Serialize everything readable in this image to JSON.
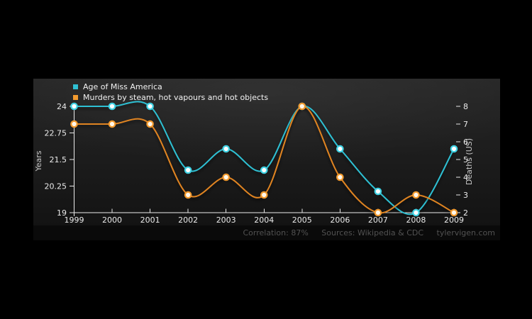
{
  "page": {
    "background": "#000000",
    "panel_background_top": "#272727",
    "panel_background_bottom": "#131313"
  },
  "legend": {
    "position": "top-left"
  },
  "footer": {
    "correlation": "Correlation: 87%",
    "sources": "Sources: Wikipedia & CDC",
    "site": "tylervigen.com"
  },
  "chart_data": {
    "type": "line",
    "title": "",
    "x": [
      1999,
      2000,
      2001,
      2002,
      2003,
      2004,
      2005,
      2006,
      2007,
      2008,
      2009
    ],
    "series": [
      {
        "name": "Age of Miss America",
        "axis": "left",
        "color": "#2fc0d3",
        "marker_stroke": "#3fd2e4",
        "marker_fill": "#ffffff",
        "values": [
          24,
          24,
          24,
          21,
          22,
          21,
          24,
          22,
          20,
          19,
          22
        ]
      },
      {
        "name": "Murders by steam, hot vapours and hot objects",
        "axis": "right",
        "color": "#e08420",
        "marker_stroke": "#f29a2e",
        "marker_fill": "#fff8ec",
        "values": [
          7,
          7,
          7,
          3,
          4,
          3,
          8,
          4,
          2,
          3,
          2
        ]
      }
    ],
    "left_axis": {
      "label": "Years",
      "range": [
        19,
        24
      ],
      "ticks": [
        24,
        22.75,
        21.5,
        20.25,
        19
      ]
    },
    "right_axis": {
      "label": "Deaths (US)",
      "range": [
        2,
        8
      ],
      "ticks": [
        8,
        7,
        6,
        5,
        4,
        3,
        2
      ]
    },
    "x_axis": {
      "ticks": [
        1999,
        2000,
        2001,
        2002,
        2003,
        2004,
        2005,
        2006,
        2007,
        2008,
        2009
      ]
    },
    "grid": false,
    "legend_position": "top-left",
    "smoothing": "spline"
  }
}
